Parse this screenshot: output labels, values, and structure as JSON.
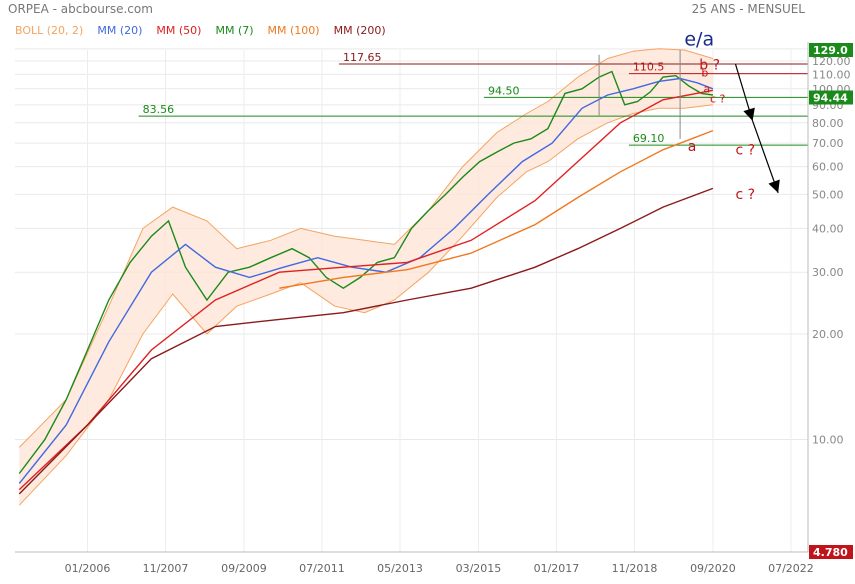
{
  "header": {
    "title": "ORPEA - abcbourse.com",
    "period": "25 ANS - MENSUEL"
  },
  "legend": [
    {
      "label": "BOLL (20, 2)",
      "color": "#f4a460"
    },
    {
      "label": "MM (20)",
      "color": "#4169e1"
    },
    {
      "label": "MM (50)",
      "color": "#e02020"
    },
    {
      "label": "MM (7)",
      "color": "#1a8a1a"
    },
    {
      "label": "MM (100)",
      "color": "#f07820"
    },
    {
      "label": "MM (200)",
      "color": "#8b1a1a"
    }
  ],
  "chart_data": {
    "type": "line",
    "y_scale": "log",
    "ylim": [
      4.78,
      129.0
    ],
    "y_ticks": [
      {
        "value": 10,
        "label": "10.00"
      },
      {
        "value": 20,
        "label": "20.00"
      },
      {
        "value": 30,
        "label": "30.00"
      },
      {
        "value": 40,
        "label": "40.00"
      },
      {
        "value": 50,
        "label": "50.00"
      },
      {
        "value": 60,
        "label": "60.00"
      },
      {
        "value": 70,
        "label": "70.00"
      },
      {
        "value": 80,
        "label": "80.00"
      },
      {
        "value": 90,
        "label": "90.00"
      },
      {
        "value": 100,
        "label": "100.00"
      },
      {
        "value": 110,
        "label": "110.00"
      },
      {
        "value": 120,
        "label": "120.00"
      },
      {
        "value": 130,
        "label": "130.00"
      }
    ],
    "x_ticks": [
      {
        "t": 2006.0,
        "label": "01/2006"
      },
      {
        "t": 2007.83,
        "label": "11/2007"
      },
      {
        "t": 2009.67,
        "label": "09/2009"
      },
      {
        "t": 2011.5,
        "label": "07/2011"
      },
      {
        "t": 2013.33,
        "label": "05/2013"
      },
      {
        "t": 2015.17,
        "label": "03/2015"
      },
      {
        "t": 2017.0,
        "label": "01/2017"
      },
      {
        "t": 2018.83,
        "label": "11/2018"
      },
      {
        "t": 2020.67,
        "label": "09/2020"
      },
      {
        "t": 2022.5,
        "label": "07/2022"
      }
    ],
    "x_range": [
      2004.3,
      2022.9
    ],
    "price_badges": [
      {
        "value": 129.0,
        "label": "129.0",
        "color": "#1a8a1a"
      },
      {
        "value": 94.44,
        "label": "94.44",
        "color": "#1a8a1a"
      },
      {
        "value": 4.78,
        "label": "4.780",
        "color": "#c0141a"
      }
    ],
    "series": [
      {
        "name": "MM (7)",
        "color": "#1a8a1a",
        "x": [
          2004.4,
          2005.0,
          2005.5,
          2006.0,
          2006.5,
          2007.0,
          2007.5,
          2007.9,
          2008.3,
          2008.8,
          2009.3,
          2009.8,
          2010.3,
          2010.8,
          2011.2,
          2011.6,
          2012.0,
          2012.4,
          2012.8,
          2013.2,
          2013.6,
          2014.0,
          2014.4,
          2014.8,
          2015.2,
          2015.6,
          2016.0,
          2016.4,
          2016.8,
          2017.2,
          2017.6,
          2018.0,
          2018.3,
          2018.6,
          2018.9,
          2019.2,
          2019.5,
          2019.8,
          2020.1,
          2020.4,
          2020.67
        ],
        "y": [
          8.0,
          10.0,
          13.0,
          18.0,
          25.0,
          32.0,
          38.0,
          42.0,
          31.0,
          25.0,
          30.0,
          31.0,
          33.0,
          35.0,
          33.0,
          29.0,
          27.0,
          29.0,
          32.0,
          33.0,
          40.0,
          45.0,
          50.0,
          56.0,
          62.0,
          66.0,
          70.0,
          72.0,
          77.0,
          97.0,
          100.0,
          108.0,
          112.0,
          90.0,
          92.0,
          98.0,
          108.0,
          109.0,
          102.0,
          97.0,
          96.0
        ]
      },
      {
        "name": "MM (20)",
        "color": "#4169e1",
        "x": [
          2004.4,
          2005.5,
          2006.5,
          2007.5,
          2008.3,
          2009.0,
          2009.8,
          2010.6,
          2011.4,
          2012.2,
          2013.0,
          2013.8,
          2014.6,
          2015.4,
          2016.2,
          2016.9,
          2017.6,
          2018.2,
          2018.8,
          2019.4,
          2019.9,
          2020.3,
          2020.67
        ],
        "y": [
          7.5,
          11.0,
          19.0,
          30.0,
          36.0,
          31.0,
          29.0,
          31.0,
          33.0,
          31.0,
          30.0,
          33.0,
          40.0,
          50.0,
          62.0,
          70.0,
          88.0,
          96.0,
          100.0,
          105.0,
          107.0,
          104.0,
          100.0
        ]
      },
      {
        "name": "MM (50)",
        "color": "#e02020",
        "x": [
          2004.4,
          2006.0,
          2007.5,
          2009.0,
          2010.5,
          2012.0,
          2013.5,
          2015.0,
          2016.5,
          2017.5,
          2018.5,
          2019.5,
          2020.67
        ],
        "y": [
          7.2,
          11.0,
          18.0,
          25.0,
          30.0,
          31.0,
          32.0,
          37.0,
          48.0,
          62.0,
          80.0,
          93.0,
          99.0
        ]
      },
      {
        "name": "MM (100)",
        "color": "#f07820",
        "x": [
          2010.5,
          2012.0,
          2013.5,
          2015.0,
          2016.5,
          2017.5,
          2018.5,
          2019.5,
          2020.67
        ],
        "y": [
          27.0,
          29.0,
          30.5,
          34.0,
          41.0,
          49.0,
          58.0,
          67.0,
          76.0
        ]
      },
      {
        "name": "MM (200)",
        "color": "#8b1a1a",
        "x": [
          2004.4,
          2006.0,
          2007.5,
          2009.0,
          2010.5,
          2012.0,
          2013.5,
          2015.0,
          2016.5,
          2017.5,
          2018.5,
          2019.5,
          2020.67
        ],
        "y": [
          7.0,
          11.0,
          17.0,
          21.0,
          22.0,
          23.0,
          25.0,
          27.0,
          31.0,
          35.0,
          40.0,
          46.0,
          52.0
        ]
      }
    ],
    "bollinger": {
      "name": "BOLL (20, 2)",
      "x": [
        2004.4,
        2005.5,
        2006.5,
        2007.3,
        2008.0,
        2008.8,
        2009.5,
        2010.3,
        2011.0,
        2011.8,
        2012.5,
        2013.2,
        2014.0,
        2014.8,
        2015.6,
        2016.3,
        2016.8,
        2017.5,
        2018.2,
        2018.8,
        2019.4,
        2020.0,
        2020.67
      ],
      "upper": [
        9.5,
        13.0,
        24.0,
        40.0,
        46.0,
        42.0,
        35.0,
        37.0,
        40.0,
        38.0,
        37.0,
        36.0,
        45.0,
        60.0,
        75.0,
        85.0,
        92.0,
        108.0,
        122.0,
        128.0,
        130.0,
        129.0,
        122.0
      ],
      "lower": [
        6.5,
        9.0,
        13.0,
        20.0,
        26.0,
        20.0,
        24.0,
        26.0,
        28.0,
        24.0,
        23.0,
        25.0,
        30.0,
        38.0,
        49.0,
        58.0,
        62.0,
        72.0,
        80.0,
        85.0,
        88.0,
        88.0,
        90.0
      ]
    },
    "extremes": [
      {
        "t": 2018.0,
        "high": 125.0,
        "low": 84.0
      },
      {
        "t": 2019.9,
        "high": 129.0,
        "low": 72.0
      }
    ],
    "levels": [
      {
        "value": 117.65,
        "label": "117.65",
        "color": "#8b1a1a",
        "x_start": 2011.9
      },
      {
        "value": 110.5,
        "label": "110.5",
        "color": "#c0141a",
        "x_start": 2018.7
      },
      {
        "value": 94.5,
        "label": "94.50",
        "color": "#1a8a1a",
        "x_start": 2015.3
      },
      {
        "value": 83.56,
        "label": "83.56",
        "color": "#1a8a1a",
        "x_start": 2007.2
      },
      {
        "value": 69.1,
        "label": "69.10",
        "color": "#1a8a1a",
        "x_start": 2018.7
      }
    ],
    "wave_labels": [
      {
        "text": "e/a",
        "t": 2020.0,
        "value": 133.0,
        "color": "#1a2a8a",
        "size": 19
      },
      {
        "text": "b ?",
        "t": 2020.35,
        "value": 113.5,
        "color": "#c0141a",
        "size": 14
      },
      {
        "text": "b",
        "t": 2020.4,
        "value": 108.5,
        "color": "#c0141a",
        "size": 11
      },
      {
        "text": "a",
        "t": 2020.45,
        "value": 97.5,
        "color": "#c0141a",
        "size": 11
      },
      {
        "text": "c ?",
        "t": 2020.6,
        "value": 91.5,
        "color": "#c0141a",
        "size": 11
      },
      {
        "text": "a",
        "t": 2020.08,
        "value": 66.5,
        "color": "#c0141a",
        "size": 14
      },
      {
        "text": "c ?",
        "t": 2021.2,
        "value": 65.0,
        "color": "#c0141a",
        "size": 14
      },
      {
        "text": "c ?",
        "t": 2021.2,
        "value": 48.5,
        "color": "#c0141a",
        "size": 14
      }
    ],
    "arrows": [
      {
        "from_t": 2021.2,
        "from_v": 117.5,
        "to_t": 2021.6,
        "to_v": 81.0
      },
      {
        "from_t": 2021.6,
        "from_v": 81.0,
        "to_t": 2022.2,
        "to_v": 50.5
      }
    ]
  }
}
